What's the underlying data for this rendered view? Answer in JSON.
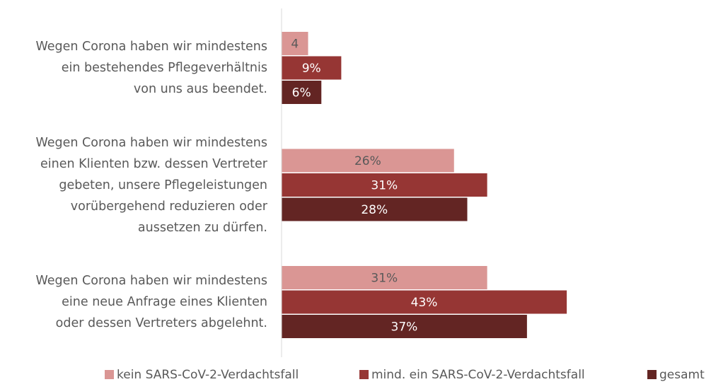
{
  "chart_data": {
    "type": "hbar",
    "categories": [
      "Wegen Corona haben wir mindestens\nein bestehendes Pflegeverhältnis\nvon uns aus beendet.",
      "Wegen Corona haben wir mindestens\neinen Klienten bzw. dessen Vertreter\ngebeten, unsere Pflegeleistungen\nvorübergehend reduzieren oder\naussetzen zu dürfen.",
      "Wegen Corona haben wir mindestens\neine neue Anfrage eines Klienten\noder dessen Vertreters abgelehnt."
    ],
    "series": [
      {
        "name": "kein SARS-CoV-2-Verdachtsfall",
        "color": "#da9694",
        "label_color": "#595959",
        "values": [
          4,
          26,
          31
        ],
        "value_labels": [
          "4",
          "26%",
          "31%"
        ]
      },
      {
        "name": "mind. ein SARS-CoV-2-Verdachtsfall",
        "color": "#963634",
        "label_color": "#ffffff",
        "values": [
          9,
          31,
          43
        ],
        "value_labels": [
          "9%",
          "31%",
          "43%"
        ]
      },
      {
        "name": "gesamt",
        "color": "#632523",
        "label_color": "#ffffff",
        "values": [
          6,
          28,
          37
        ],
        "value_labels": [
          "6%",
          "28%",
          "37%"
        ]
      }
    ],
    "xlim": [
      0,
      64
    ],
    "legend": "bottom"
  }
}
